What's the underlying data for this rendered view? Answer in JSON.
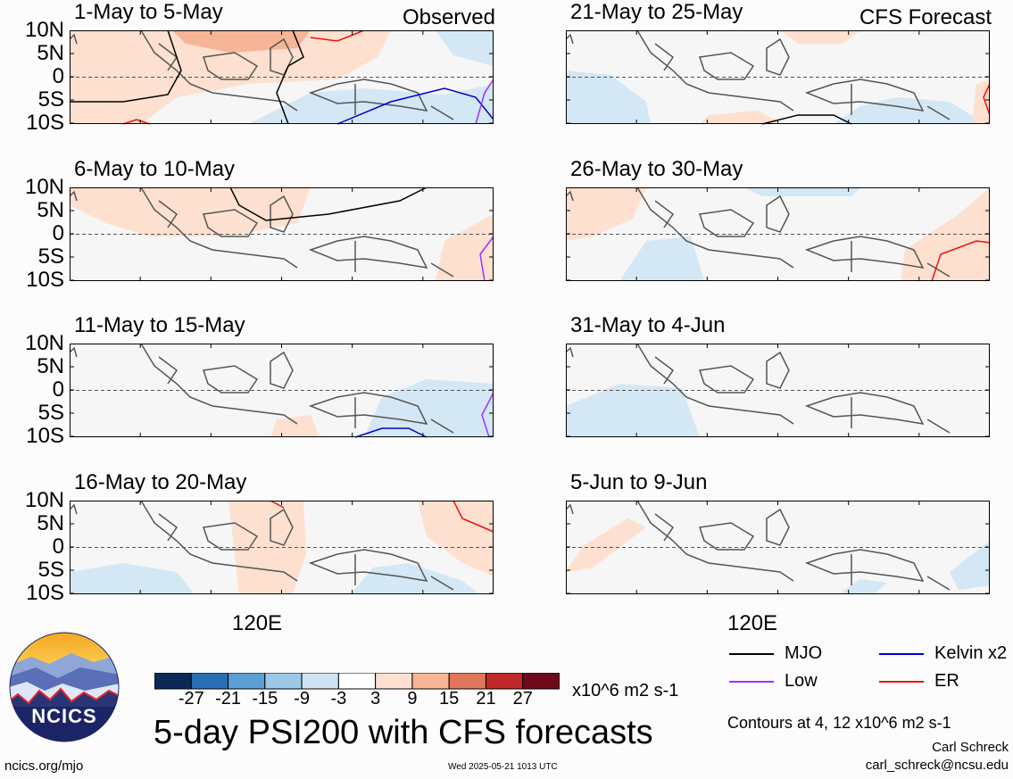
{
  "title": "5-day PSI200 with CFS forecasts",
  "labels": {
    "observed": "Observed",
    "forecast": "CFS Forecast"
  },
  "lat_ticks": [
    "10N",
    "5N",
    "0",
    "5S",
    "10S"
  ],
  "lon_tick": "120E",
  "panels": [
    {
      "period": "1-May to 5-May"
    },
    {
      "period": "6-May to 10-May"
    },
    {
      "period": "11-May to 15-May"
    },
    {
      "period": "16-May to 20-May"
    },
    {
      "period": "21-May to 25-May"
    },
    {
      "period": "26-May to 30-May"
    },
    {
      "period": "31-May to 4-Jun"
    },
    {
      "period": "5-Jun to 9-Jun"
    }
  ],
  "colorbar": {
    "colors": [
      "#0a2a55",
      "#2a6fb5",
      "#5aa0d6",
      "#9dc8e8",
      "#cde3f2",
      "#ffffff",
      "#fde0cf",
      "#f6b596",
      "#e0765a",
      "#c0282a",
      "#6e0a1c"
    ],
    "ticks": [
      "-27",
      "-21",
      "-15",
      "-9",
      "-3",
      "3",
      "9",
      "15",
      "21",
      "27"
    ],
    "units": "x10^6 m2 s-1"
  },
  "legend": [
    {
      "name": "MJO",
      "color": "#000000"
    },
    {
      "name": "Kelvin x2",
      "color": "#0000cc"
    },
    {
      "name": "Low",
      "color": "#9933ff"
    },
    {
      "name": "ER",
      "color": "#ee1111"
    }
  ],
  "contours_note": "Contours at 4, 12 x10^6 m2 s-1",
  "author": "Carl Schreck",
  "email": "carl_schreck@ncsu.edu",
  "site": "ncics.org/mjo",
  "timestamp": "Wed 2025-05-21 1013 UTC",
  "logo_text": "NCICS"
}
